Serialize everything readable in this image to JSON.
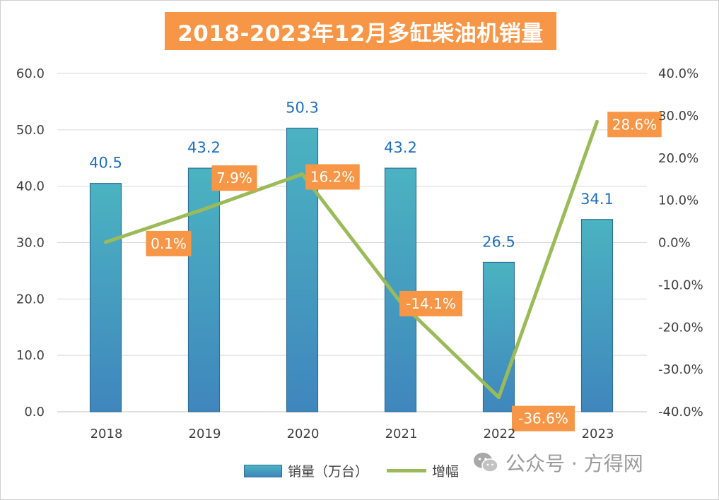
{
  "chart_data": {
    "type": "bar",
    "title": "2018-2023年12月多缸柴油机销量",
    "categories": [
      "2018",
      "2019",
      "2020",
      "2021",
      "2022",
      "2023"
    ],
    "series": [
      {
        "name": "销量（万台）",
        "type": "bar",
        "axis": "left",
        "values": [
          40.5,
          43.2,
          50.3,
          43.2,
          26.5,
          34.1
        ],
        "labels": [
          "40.5",
          "43.2",
          "50.3",
          "43.2",
          "26.5",
          "34.1"
        ]
      },
      {
        "name": "增幅",
        "type": "line",
        "axis": "right",
        "values": [
          0.1,
          7.9,
          16.2,
          -14.1,
          -36.6,
          28.6
        ],
        "labels": [
          "0.1%",
          "7.9%",
          "16.2%",
          "-14.1%",
          "-36.6%",
          "28.6%"
        ]
      }
    ],
    "y_left": {
      "range": [
        0,
        60
      ],
      "ticks": [
        0,
        10,
        20,
        30,
        40,
        50,
        60
      ],
      "tick_labels": [
        "0.0",
        "10.0",
        "20.0",
        "30.0",
        "40.0",
        "50.0",
        "60.0"
      ]
    },
    "y_right": {
      "range": [
        -40,
        40
      ],
      "ticks": [
        -40,
        -30,
        -20,
        -10,
        0,
        10,
        20,
        30,
        40
      ],
      "tick_labels": [
        "-40.0%",
        "-30.0%",
        "-20.0%",
        "-10.0%",
        "0.0%",
        "10.0%",
        "20.0%",
        "30.0%",
        "40.0%"
      ]
    },
    "grid": true,
    "legend_position": "bottom"
  },
  "legend": {
    "bar_label": "销量（万台）",
    "line_label": "增幅"
  },
  "watermark": {
    "text": "公众号 · 方得网",
    "icon": "wechat-icon"
  },
  "colors": {
    "title_bg": "#f79646",
    "bar_top": "#4bb3c1",
    "bar_bottom": "#3f86bd",
    "line": "#9bbb59",
    "pct_label_bg": "#f79646",
    "bar_label": "#1f6fbf"
  }
}
